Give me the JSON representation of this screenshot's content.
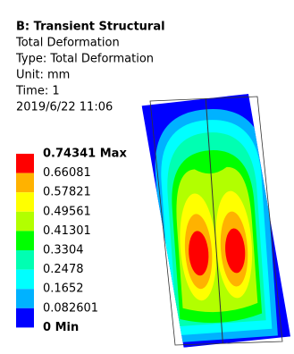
{
  "header": {
    "title": "B: Transient Structural",
    "lines": [
      "Total Deformation",
      "Type: Total Deformation",
      "Unit: mm",
      "Time: 1",
      "2019/6/22 11:06"
    ]
  },
  "legend": {
    "labels": [
      "0.74341 Max",
      "0.66081",
      "0.57821",
      "0.49561",
      "0.41301",
      "0.3304",
      "0.2478",
      "0.1652",
      "0.082601",
      "0 Min"
    ],
    "colors": [
      "#ff0000",
      "#ffb200",
      "#ffff00",
      "#b2ff00",
      "#00ff00",
      "#00ffb2",
      "#00ffff",
      "#00b2ff",
      "#0000ff"
    ]
  }
}
